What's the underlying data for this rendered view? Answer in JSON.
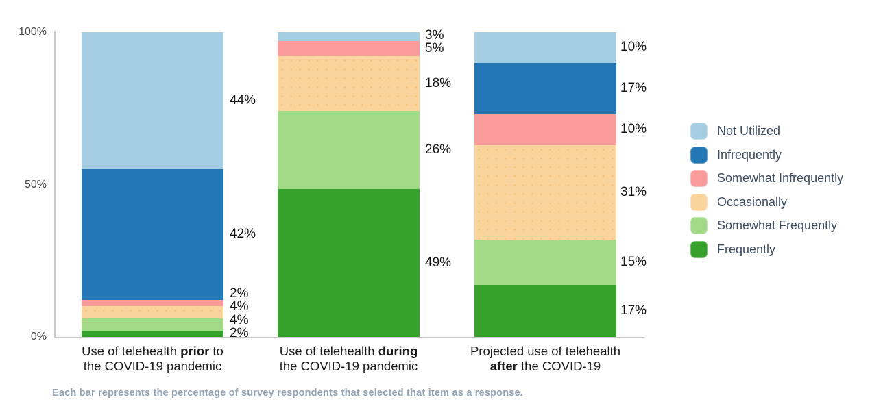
{
  "chart_data": {
    "type": "bar",
    "stacked": true,
    "orientation": "vertical",
    "value_suffix": "%",
    "ylim": [
      0,
      100
    ],
    "grid": false,
    "legend_position": "right",
    "y_ticks": [
      {
        "label": "100%",
        "value": 100
      },
      {
        "label": "50%",
        "value": 50
      },
      {
        "label": "0%",
        "value": 0
      }
    ],
    "categories": [
      {
        "id": "prior",
        "lines": [
          [
            {
              "t": "Use of telehealth "
            },
            {
              "t": "prior",
              "b": true
            },
            {
              "t": " to"
            }
          ],
          [
            {
              "t": "the COVID-19 pandemic"
            }
          ]
        ]
      },
      {
        "id": "during",
        "lines": [
          [
            {
              "t": "Use of telehealth "
            },
            {
              "t": "during",
              "b": true
            }
          ],
          [
            {
              "t": "the COVID-19 pandemic"
            }
          ]
        ]
      },
      {
        "id": "after",
        "lines": [
          [
            {
              "t": "Projected use of telehealth"
            }
          ],
          [
            {
              "t": "after",
              "b": true
            },
            {
              "t": " the COVID-19"
            }
          ]
        ]
      }
    ],
    "series": [
      {
        "name": "Not Utilized",
        "color": "#a6cee3",
        "values": [
          44,
          3,
          10
        ],
        "textured": false
      },
      {
        "name": "Infrequently",
        "color": "#2277b4",
        "values": [
          42,
          0,
          17
        ],
        "textured": false
      },
      {
        "name": "Somewhat Infrequently",
        "color": "#f99c9b",
        "values": [
          2,
          5,
          10
        ],
        "textured": false
      },
      {
        "name": "Occasionally",
        "color": "#fad49d",
        "values": [
          4,
          18,
          31
        ],
        "textured": true
      },
      {
        "name": "Somewhat Frequently",
        "color": "#a3da87",
        "values": [
          4,
          26,
          15
        ],
        "textured": false
      },
      {
        "name": "Frequently",
        "color": "#36a12d",
        "values": [
          2,
          49,
          17
        ],
        "textured": false
      }
    ],
    "caption": "Each bar represents the percentage of survey respondents that selected that item as a response."
  }
}
